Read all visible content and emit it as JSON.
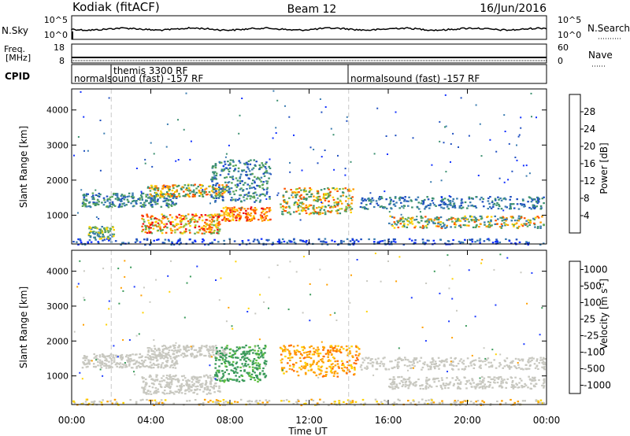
{
  "header": {
    "station": "Kodiak (fitACF)",
    "beam": "Beam 12",
    "date": "16/Jun/2016"
  },
  "top_panels": {
    "nsky": {
      "label": "N.Sky",
      "ticks": [
        "10^5",
        "10^0"
      ]
    },
    "nsearch": {
      "label": "N.Search",
      "ticks": [
        "10^5",
        "10^0"
      ]
    },
    "freq": {
      "label1": "Freq.",
      "label2": "[MHz]",
      "ticks": [
        "18",
        "8"
      ]
    },
    "nave": {
      "label": "Nave",
      "ticks": [
        "60",
        "0"
      ]
    },
    "cpid": {
      "label": "CPID",
      "segments": [
        "normalsound (fast) -157 RF",
        "themis 3300 RF",
        "normalsound (fast) -157 RF"
      ]
    }
  },
  "chart_data": [
    {
      "type": "heatmap",
      "title": "Power",
      "xlabel": "Time UT",
      "ylabel": "Slant Range [km]",
      "xlim": [
        "00:00",
        "24:00"
      ],
      "x_ticks": [
        "00:00",
        "04:00",
        "08:00",
        "12:00",
        "16:00",
        "20:00",
        "00:00"
      ],
      "ylim": [
        180,
        4600
      ],
      "y_ticks": [
        1000,
        2000,
        3000,
        4000
      ],
      "colorbar": {
        "label": "Power [dB]",
        "ticks": [
          "4",
          "8",
          "12",
          "16",
          "20",
          "24",
          "28"
        ],
        "colors": [
          "#1030ff",
          "#2050c0",
          "#3a7cb0",
          "#3c9070",
          "#5aa55a",
          "#a0c838",
          "#ffd200",
          "#ff9a00",
          "#ff5500",
          "#ee1111"
        ]
      },
      "features": [
        {
          "x": [
            0.0,
            23.9
          ],
          "y": [
            180,
            350
          ],
          "value": "4-8 dB",
          "note": "near-range band"
        },
        {
          "x": [
            0.5,
            5.3
          ],
          "y": [
            1250,
            1650
          ],
          "value": "4-16 dB"
        },
        {
          "x": [
            0.8,
            2.1
          ],
          "y": [
            350,
            700
          ],
          "value": "8-20 dB"
        },
        {
          "x": [
            3.5,
            7.5
          ],
          "y": [
            500,
            1050
          ],
          "value": "12-28 dB"
        },
        {
          "x": [
            3.8,
            7.8
          ],
          "y": [
            1550,
            1900
          ],
          "value": "12-28 dB"
        },
        {
          "x": [
            7.5,
            10.0
          ],
          "y": [
            850,
            1250
          ],
          "value": "16-28 dB"
        },
        {
          "x": [
            7.0,
            10.0
          ],
          "y": [
            1400,
            2600
          ],
          "value": "4-20 dB"
        },
        {
          "x": [
            10.5,
            14.2
          ],
          "y": [
            1050,
            1800
          ],
          "value": "12-28 dB"
        },
        {
          "x": [
            14.5,
            23.9
          ],
          "y": [
            1200,
            1550
          ],
          "value": "4-12 dB"
        },
        {
          "x": [
            16.0,
            23.9
          ],
          "y": [
            650,
            1000
          ],
          "value": "8-28 dB"
        }
      ]
    },
    {
      "type": "heatmap",
      "title": "Velocity",
      "xlabel": "Time UT",
      "ylabel": "Slant Range [km]",
      "xlim": [
        "00:00",
        "24:00"
      ],
      "x_ticks": [
        "00:00",
        "04:00",
        "08:00",
        "12:00",
        "16:00",
        "20:00",
        "00:00"
      ],
      "ylim": [
        180,
        4600
      ],
      "y_ticks": [
        1000,
        2000,
        3000,
        4000
      ],
      "colorbar": {
        "label": "Velocity [m s-1]",
        "ticks": [
          "1000",
          "500",
          "100",
          "25",
          "-25",
          "-100",
          "-500",
          "-1000"
        ],
        "colors": [
          "#1e3cff",
          "#2a6ec8",
          "#3a9a5a",
          "#5fc040",
          "#c8c8c0",
          "#ffd200",
          "#ffa000",
          "#ff6a00",
          "#ee1111"
        ]
      },
      "features": [
        {
          "x": [
            0.0,
            23.9
          ],
          "y": [
            180,
            350
          ],
          "value": "ground scatter"
        },
        {
          "x": [
            0.5,
            5.3
          ],
          "y": [
            1250,
            1650
          ],
          "value": "-25 to 25 m/s"
        },
        {
          "x": [
            3.5,
            7.5
          ],
          "y": [
            500,
            1050
          ],
          "value": "-25 to 25 m/s"
        },
        {
          "x": [
            3.8,
            7.8
          ],
          "y": [
            1550,
            1900
          ],
          "value": "-25 to 25 m/s"
        },
        {
          "x": [
            7.2,
            9.8
          ],
          "y": [
            850,
            1900
          ],
          "value": "100 to 500 m/s"
        },
        {
          "x": [
            10.5,
            14.5
          ],
          "y": [
            1000,
            1900
          ],
          "value": "-100 to -500 m/s"
        },
        {
          "x": [
            14.5,
            23.9
          ],
          "y": [
            1200,
            1550
          ],
          "value": "-25 to 25 m/s"
        },
        {
          "x": [
            16.0,
            23.9
          ],
          "y": [
            650,
            1000
          ],
          "value": "-25 to 25 m/s"
        }
      ]
    }
  ]
}
